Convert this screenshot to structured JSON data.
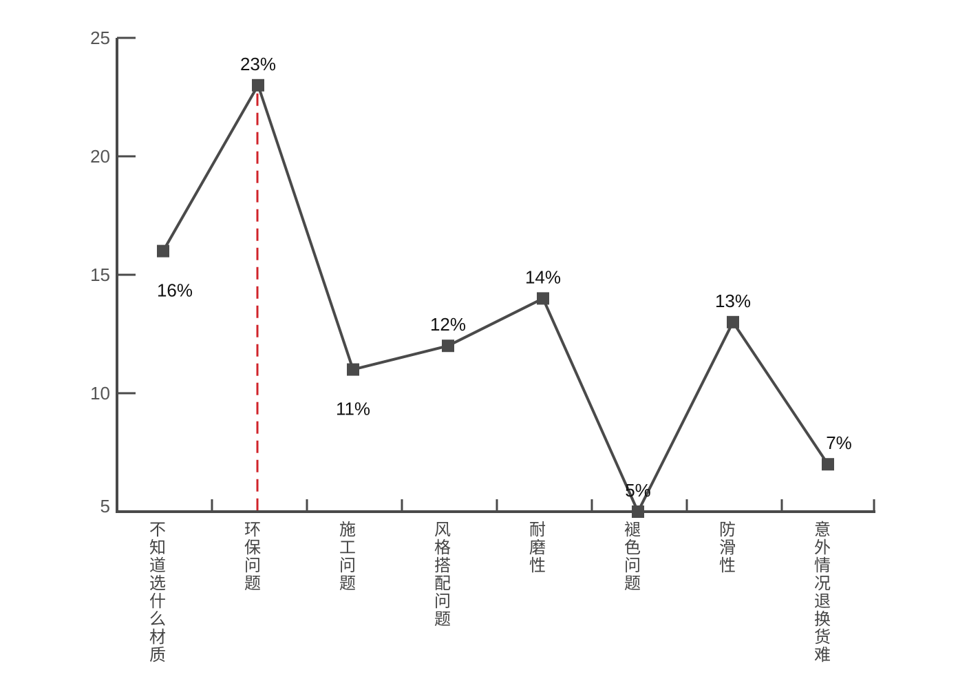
{
  "chart_data": {
    "type": "line",
    "categories": [
      "不知道选什么材质",
      "环保问题",
      "施工问题",
      "风格搭配问题",
      "耐磨性",
      "褪色问题",
      "防滑性",
      "意外情况退换货难"
    ],
    "values": [
      16,
      23,
      11,
      12,
      14,
      5,
      13,
      7
    ],
    "data_labels": [
      "16%",
      "23%",
      "11%",
      "12%",
      "14%",
      "5%",
      "13%",
      "7%"
    ],
    "y_ticks": [
      "5",
      "10",
      "15",
      "20",
      "25"
    ],
    "ylim": [
      5,
      25
    ],
    "highlight_category_index": 1,
    "colors": {
      "line": "#4a4a4a",
      "marker": "#4a4a4a",
      "axis": "#4a4a4a",
      "highlight": "#d0232a"
    },
    "grid": false,
    "legend": "none"
  }
}
